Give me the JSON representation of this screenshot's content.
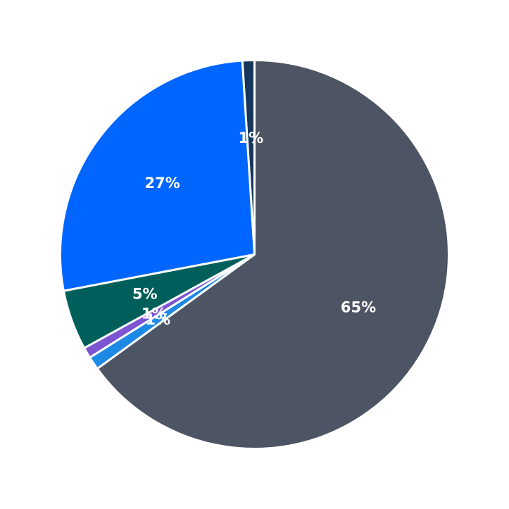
{
  "chart_data": {
    "type": "pie",
    "title": "",
    "start_angle_deg": 90,
    "direction": "counterclockwise",
    "slices": [
      {
        "value": 1.0,
        "label": "1%",
        "color": "#16365c"
      },
      {
        "value": 27.0,
        "label": "27%",
        "color": "#0066ff"
      },
      {
        "value": 5.0,
        "label": "5%",
        "color": "#005f5a"
      },
      {
        "value": 0.9,
        "label": "1%",
        "color": "#7b55d2"
      },
      {
        "value": 1.1,
        "label": "1%",
        "color": "#1e88e5"
      },
      {
        "value": 65.0,
        "label": "65%",
        "color": "#4d5564"
      }
    ],
    "edge_color": "#ffffff"
  }
}
